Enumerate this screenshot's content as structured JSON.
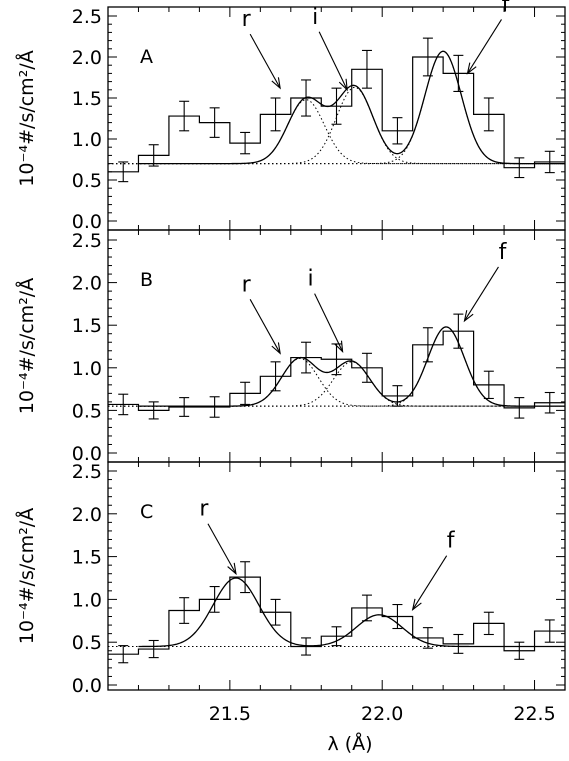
{
  "chart_data": {
    "type": "histogram-with-model",
    "xlabel": "λ (Å)",
    "xlim": [
      21.1,
      22.6
    ],
    "x_ticks": [
      "21.5",
      "22.0",
      "22.5"
    ],
    "x_tick_values": [
      21.5,
      22.0,
      22.5
    ],
    "continuum_style": "dotted",
    "panels": [
      {
        "label": "A",
        "ylabel": "10⁻⁴#/s/cm²/Å",
        "ylim": [
          0.0,
          2.6
        ],
        "y_ticks": [
          "0.0",
          "0.5",
          "1.0",
          "1.5",
          "2.0",
          "2.5"
        ],
        "bins": {
          "edges": [
            21.1,
            21.2,
            21.3,
            21.4,
            21.5,
            21.6,
            21.7,
            21.8,
            21.9,
            22.0,
            22.1,
            22.2,
            22.3,
            22.4,
            22.5,
            22.6
          ],
          "values": [
            0.6,
            0.8,
            1.28,
            1.2,
            0.95,
            1.3,
            1.5,
            1.4,
            1.85,
            1.1,
            2.0,
            1.8,
            1.3,
            0.65,
            0.72
          ],
          "errors": [
            0.12,
            0.13,
            0.18,
            0.18,
            0.13,
            0.2,
            0.22,
            0.22,
            0.23,
            0.16,
            0.23,
            0.22,
            0.2,
            0.12,
            0.13
          ]
        },
        "continuum": 0.7,
        "gaussians": [
          {
            "center": 21.75,
            "amplitude": 0.78,
            "sigma": 0.06
          },
          {
            "center": 21.91,
            "amplitude": 0.93,
            "sigma": 0.06
          },
          {
            "center": 22.2,
            "amplitude": 1.37,
            "sigma": 0.06
          }
        ],
        "line_labels": [
          {
            "text": "r",
            "arrow_to": [
              21.665,
              1.62
            ]
          },
          {
            "text": "i",
            "dot": true,
            "arrow_to": [
              21.885,
              1.6
            ]
          },
          {
            "text": "f",
            "arrow_to": [
              22.28,
              1.8
            ]
          }
        ]
      },
      {
        "label": "B",
        "ylabel": "10⁻⁴#/s/cm²/Å",
        "ylim": [
          0.0,
          2.6
        ],
        "y_ticks": [
          "0.0",
          "0.5",
          "1.0",
          "1.5",
          "2.0",
          "2.5"
        ],
        "bins": {
          "edges": [
            21.1,
            21.2,
            21.3,
            21.4,
            21.5,
            21.6,
            21.7,
            21.8,
            21.9,
            22.0,
            22.1,
            22.2,
            22.3,
            22.4,
            22.5,
            22.6
          ],
          "values": [
            0.57,
            0.5,
            0.54,
            0.54,
            0.7,
            0.9,
            1.12,
            1.1,
            1.0,
            0.67,
            1.27,
            1.43,
            0.8,
            0.53,
            0.59
          ],
          "errors": [
            0.12,
            0.1,
            0.11,
            0.12,
            0.13,
            0.17,
            0.18,
            0.18,
            0.17,
            0.12,
            0.2,
            0.2,
            0.16,
            0.12,
            0.12
          ]
        },
        "continuum": 0.55,
        "gaussians": [
          {
            "center": 21.73,
            "amplitude": 0.56,
            "sigma": 0.06
          },
          {
            "center": 21.9,
            "amplitude": 0.52,
            "sigma": 0.06
          },
          {
            "center": 22.21,
            "amplitude": 0.93,
            "sigma": 0.06
          }
        ],
        "line_labels": [
          {
            "text": "r",
            "arrow_to": [
              21.665,
              1.17
            ]
          },
          {
            "text": "i",
            "dot": true,
            "arrow_to": [
              21.87,
              1.19
            ]
          },
          {
            "text": "f",
            "arrow_to": [
              22.27,
              1.55
            ]
          }
        ]
      },
      {
        "label": "C",
        "ylabel": "10⁻⁴#/s/cm²/Å",
        "ylim": [
          0.0,
          2.6
        ],
        "y_ticks": [
          "0.0",
          "0.5",
          "1.0",
          "1.5",
          "2.0",
          "2.5"
        ],
        "bins": {
          "edges": [
            21.1,
            21.2,
            21.3,
            21.4,
            21.5,
            21.6,
            21.7,
            21.8,
            21.9,
            22.0,
            22.1,
            22.2,
            22.3,
            22.4,
            22.5,
            22.6
          ],
          "values": [
            0.36,
            0.42,
            0.87,
            1.0,
            1.26,
            0.85,
            0.45,
            0.57,
            0.9,
            0.8,
            0.55,
            0.48,
            0.72,
            0.4,
            0.63
          ],
          "errors": [
            0.1,
            0.1,
            0.15,
            0.15,
            0.18,
            0.15,
            0.1,
            0.11,
            0.15,
            0.14,
            0.12,
            0.11,
            0.13,
            0.1,
            0.13
          ]
        },
        "continuum": 0.45,
        "gaussians": [
          {
            "center": 21.52,
            "amplitude": 0.8,
            "sigma": 0.075
          },
          {
            "center": 21.99,
            "amplitude": 0.37,
            "sigma": 0.075
          }
        ],
        "line_labels": [
          {
            "text": "r",
            "arrow_to": [
              21.52,
              1.3
            ]
          },
          {
            "text": "f",
            "arrow_to": [
              22.1,
              0.88
            ]
          }
        ]
      }
    ]
  }
}
